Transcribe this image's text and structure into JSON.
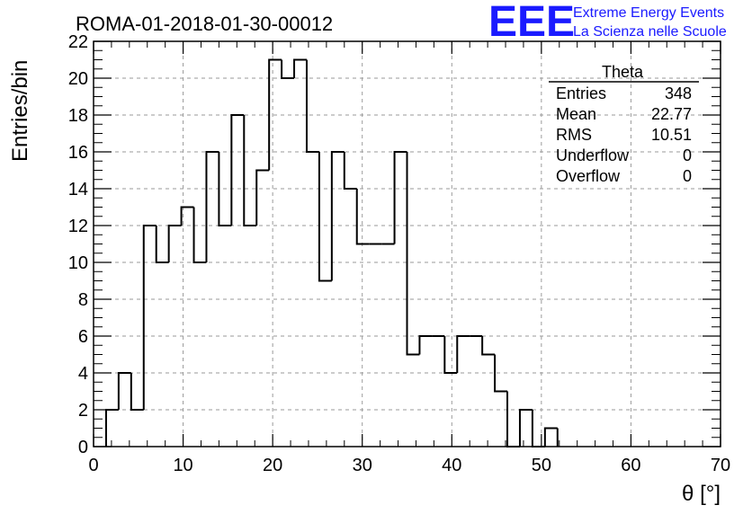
{
  "chart_data": {
    "type": "bar",
    "title": "ROMA-01-2018-01-30-00012",
    "xlabel": "θ [°]",
    "ylabel": "Entries/bin",
    "xlim": [
      0,
      70
    ],
    "ylim": [
      0,
      22
    ],
    "grid": true,
    "x_ticks": [
      "0",
      "10",
      "20",
      "30",
      "40",
      "50",
      "60",
      "70"
    ],
    "y_ticks": [
      "0",
      "2",
      "4",
      "6",
      "8",
      "10",
      "12",
      "14",
      "16",
      "18",
      "20",
      "22"
    ],
    "bin_width": 1.4,
    "x_start": 1.4,
    "values": [
      2,
      4,
      2,
      12,
      10,
      12,
      13,
      10,
      16,
      12,
      18,
      12,
      15,
      21,
      20,
      21,
      16,
      9,
      16,
      14,
      11,
      11,
      11,
      16,
      5,
      6,
      6,
      4,
      6,
      6,
      5,
      3,
      0,
      2,
      0,
      1
    ]
  },
  "stats": {
    "name": "Theta",
    "rows": [
      {
        "label": "Entries",
        "value": "348"
      },
      {
        "label": "Mean",
        "value": "22.77"
      },
      {
        "label": "RMS",
        "value": "10.51"
      },
      {
        "label": "Underflow",
        "value": "0"
      },
      {
        "label": "Overflow",
        "value": "0"
      }
    ]
  },
  "logo": {
    "mark": "EEE",
    "line1": "Extreme Energy Events",
    "line2": "La Scienza nelle Scuole",
    "color": "#1a1aff"
  }
}
